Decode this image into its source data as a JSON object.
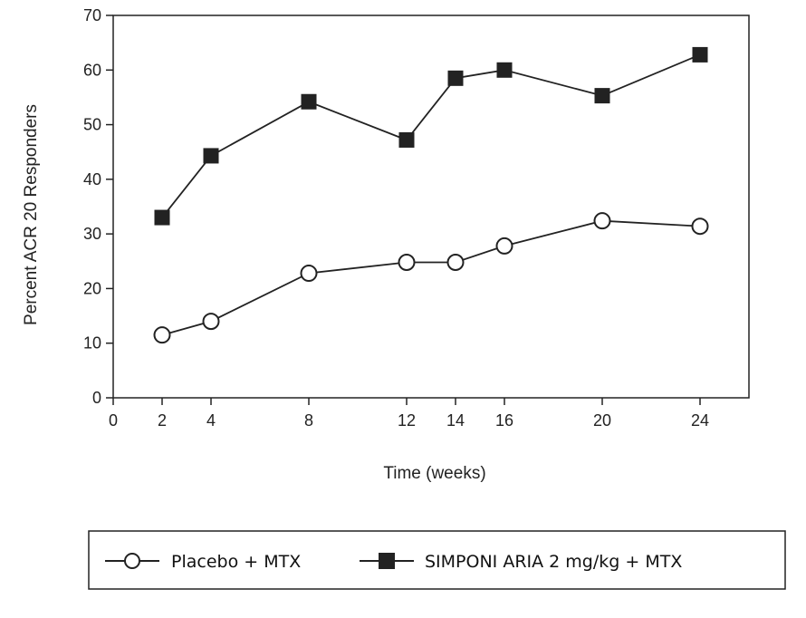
{
  "chart_data": {
    "type": "line",
    "xlabel": "Time (weeks)",
    "ylabel": "Percent ACR 20 Responders",
    "xlim": [
      0,
      26
    ],
    "ylim": [
      0,
      70
    ],
    "x_ticks": [
      "0",
      "2",
      "4",
      "8",
      "12",
      "14",
      "16",
      "20",
      "24"
    ],
    "y_ticks": [
      "0",
      "10",
      "20",
      "30",
      "40",
      "50",
      "60",
      "70"
    ],
    "grid": false,
    "legend_position": "bottom",
    "series": [
      {
        "name": "Placebo + MTX",
        "marker": "open-circle",
        "color": "#222222",
        "x": [
          2,
          4,
          8,
          12,
          14,
          16,
          20,
          24
        ],
        "y": [
          11.5,
          14,
          22.8,
          24.8,
          24.8,
          27.8,
          32.4,
          31.4
        ]
      },
      {
        "name": "SIMPONI ARIA 2 mg/kg + MTX",
        "marker": "filled-square",
        "color": "#222222",
        "x": [
          2,
          4,
          8,
          12,
          14,
          16,
          20,
          24
        ],
        "y": [
          33,
          44.3,
          54.2,
          47.2,
          58.5,
          60,
          55.3,
          62.8
        ]
      }
    ]
  }
}
